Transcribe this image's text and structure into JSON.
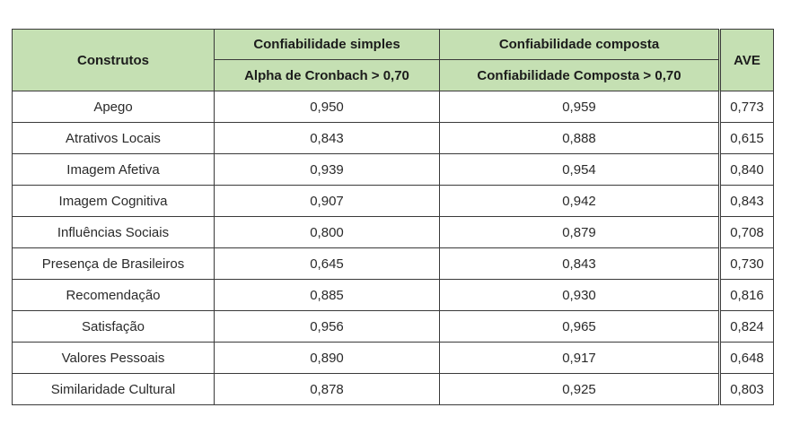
{
  "header": {
    "construtos": "Construtos",
    "simple_group": "Confiabilidade simples",
    "simple_sub": "Alpha de Cronbach > 0,70",
    "composite_group": "Confiabilidade composta",
    "composite_sub": "Confiabilidade Composta > 0,70",
    "ave": "AVE"
  },
  "rows": [
    {
      "construto": "Apego",
      "alpha": "0,950",
      "cc": "0,959",
      "ave": "0,773"
    },
    {
      "construto": "Atrativos Locais",
      "alpha": "0,843",
      "cc": "0,888",
      "ave": "0,615"
    },
    {
      "construto": "Imagem Afetiva",
      "alpha": "0,939",
      "cc": "0,954",
      "ave": "0,840"
    },
    {
      "construto": "Imagem Cognitiva",
      "alpha": "0,907",
      "cc": "0,942",
      "ave": "0,843"
    },
    {
      "construto": "Influências Sociais",
      "alpha": "0,800",
      "cc": "0,879",
      "ave": "0,708"
    },
    {
      "construto": "Presença de Brasileiros",
      "alpha": "0,645",
      "cc": "0,843",
      "ave": "0,730"
    },
    {
      "construto": "Recomendação",
      "alpha": "0,885",
      "cc": "0,930",
      "ave": "0,816"
    },
    {
      "construto": "Satisfação",
      "alpha": "0,956",
      "cc": "0,965",
      "ave": "0,824"
    },
    {
      "construto": "Valores Pessoais",
      "alpha": "0,890",
      "cc": "0,917",
      "ave": "0,648"
    },
    {
      "construto": "Similaridade Cultural",
      "alpha": "0,878",
      "cc": "0,925",
      "ave": "0,803"
    }
  ],
  "colors": {
    "header_bg": "#c5e0b3",
    "border": "#3a3a3a"
  }
}
